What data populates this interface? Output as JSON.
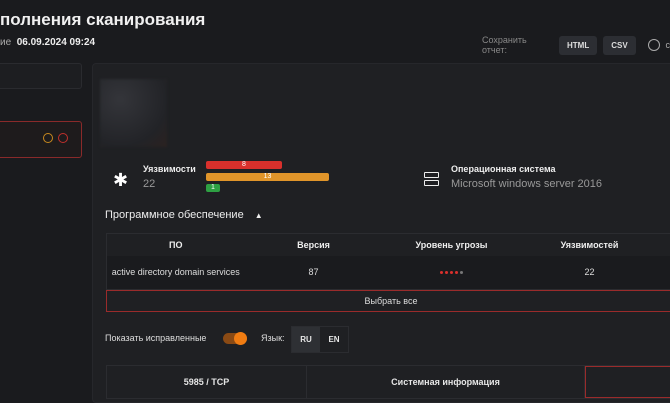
{
  "header": {
    "title": "полнения сканирования",
    "date_label": "ие",
    "date": "06.09.2024 09:24",
    "save_label": "Сохранить отчет:",
    "html_btn": "HTML",
    "csv_btn": "CSV",
    "cut_label": "с"
  },
  "summary": {
    "vuln_label": "Уязвимости",
    "vuln_total": "22",
    "bars": [
      {
        "value": "8",
        "color": "#d9302c"
      },
      {
        "value": "13",
        "color": "#e0952a"
      },
      {
        "value": "1",
        "color": "#2ea043"
      }
    ],
    "os_label": "Операционная система",
    "os_value": "Microsoft windows server 2016"
  },
  "software": {
    "title": "Программное обеспечение",
    "columns": [
      "ПО",
      "Версия",
      "Уровень угрозы",
      "Уязвимостей"
    ],
    "rows": [
      {
        "name": "active directory domain services",
        "version": "87",
        "threat_level": 4,
        "threat_max": 5,
        "vulns": "22"
      }
    ],
    "select_all": "Выбрать все"
  },
  "controls": {
    "show_fixed": "Показать исправленные",
    "show_fixed_on": true,
    "lang_label": "Язык:",
    "langs": [
      "RU",
      "EN"
    ],
    "lang_selected": "RU"
  },
  "tabs": [
    "5985 / TCP",
    "Системная информация",
    ""
  ],
  "colors": {
    "accent": "#f07c12",
    "danger": "#d9302c"
  }
}
